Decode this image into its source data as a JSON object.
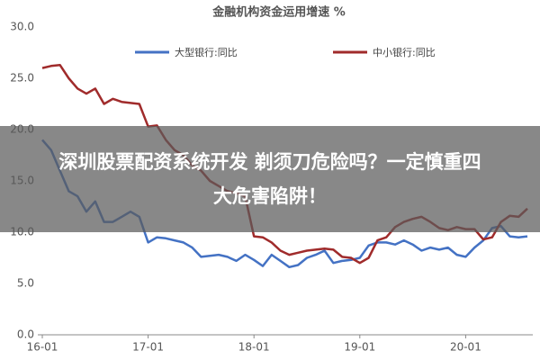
{
  "chart_data": {
    "type": "line",
    "title": "金融机构资金运用增速 %",
    "categories": [
      "16-01",
      null,
      null,
      null,
      null,
      null,
      null,
      null,
      null,
      null,
      null,
      null,
      "17-01",
      null,
      null,
      null,
      null,
      null,
      null,
      null,
      null,
      null,
      null,
      null,
      "18-01",
      null,
      null,
      null,
      null,
      null,
      null,
      null,
      null,
      null,
      null,
      null,
      "19-01",
      null,
      null,
      null,
      null,
      null,
      null,
      null,
      null,
      null,
      null,
      null,
      "20-01",
      null,
      null,
      null,
      null,
      null,
      null,
      null
    ],
    "series": [
      {
        "name": "大型银行:同比",
        "color": "#4472c4",
        "values": [
          19,
          18,
          16,
          14,
          13.5,
          12,
          13,
          11,
          11,
          11.5,
          12,
          11.5,
          9,
          9.5,
          9.4,
          9.2,
          9,
          8.5,
          7.6,
          7.7,
          7.8,
          7.6,
          7.2,
          7.8,
          7.3,
          6.7,
          7.8,
          7.2,
          6.6,
          6.8,
          7.5,
          7.8,
          8.2,
          7,
          7.2,
          7.3,
          7.5,
          8.7,
          9,
          9,
          8.8,
          9.2,
          8.8,
          8.2,
          8.5,
          8.3,
          8.5,
          7.8,
          7.6,
          8.5,
          9.2,
          10.4,
          10.6,
          9.6,
          9.5,
          9.6
        ]
      },
      {
        "name": "中小银行:同比",
        "color": "#a02b2b",
        "values": [
          26,
          26.2,
          26.3,
          25,
          24,
          23.5,
          24,
          22.5,
          23,
          22.7,
          22.6,
          22.5,
          20.3,
          20.4,
          19,
          18,
          17.5,
          16.5,
          16,
          15,
          14.5,
          14,
          13.8,
          13.5,
          9.6,
          9.5,
          9,
          8.2,
          7.8,
          8,
          8.2,
          8.3,
          8.4,
          8.3,
          7.6,
          7.5,
          7,
          7.5,
          9.2,
          9.5,
          10.5,
          11,
          11.3,
          11.5,
          11,
          10.4,
          10.2,
          10.5,
          10.3,
          10.3,
          9.3,
          9.5,
          11,
          11.6,
          11.5,
          12.3
        ]
      }
    ],
    "ylim": [
      0,
      30
    ],
    "yticks": [
      {
        "value": 0,
        "label": "0.0"
      },
      {
        "value": 5,
        "label": "5.0"
      },
      {
        "value": 10,
        "label": "10.0"
      },
      {
        "value": 15,
        "label": "15.0"
      },
      {
        "value": 20,
        "label": "20.0"
      },
      {
        "value": 25,
        "label": "25.0"
      },
      {
        "value": 30,
        "label": "30.0"
      }
    ],
    "grid": false
  },
  "overlay": {
    "headline": [
      "深圳股票配资系统开发 剃须刀危险吗？一定慎重四",
      "大危害陷阱！"
    ]
  }
}
